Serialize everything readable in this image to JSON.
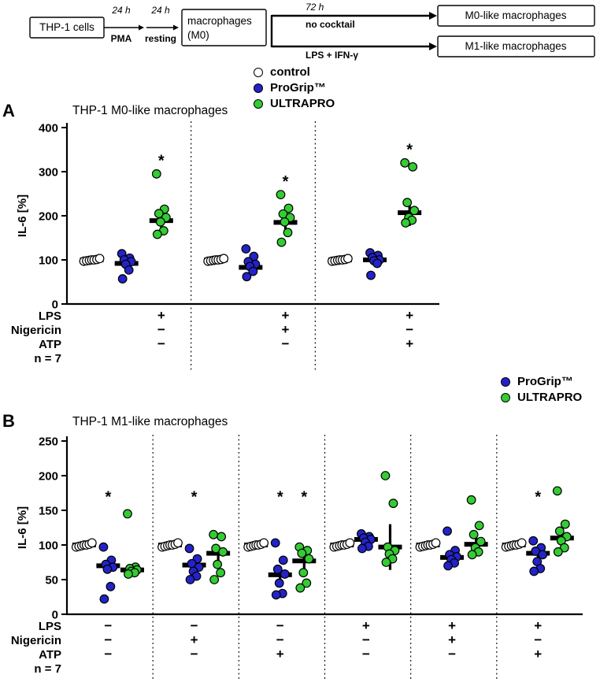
{
  "flow_diagram": {
    "box_thp1": "THP-1 cells",
    "arrow1_top": "24 h",
    "arrow1_bottom": "PMA",
    "arrow2_top": "24 h",
    "arrow2_bottom": "resting",
    "box_m0_line1": "macrophages",
    "box_m0_line2": "(M0)",
    "branch_top_time": "72 h",
    "branch_top_label": "no cocktail",
    "branch_bottom_label": "LPS + IFN-γ",
    "box_m0like": "M0-like macrophages",
    "box_m1like": "M1-like macrophages"
  },
  "legend_main": {
    "items": [
      {
        "label": "control",
        "marker": "open-circle"
      },
      {
        "label": "ProGrip™",
        "marker": "blue-circle"
      },
      {
        "label": "ULTRAPRO",
        "marker": "green-circle"
      }
    ]
  },
  "legend_b": {
    "items": [
      {
        "label": "ProGrip™",
        "marker": "blue-circle"
      },
      {
        "label": "ULTRAPRO",
        "marker": "green-circle"
      }
    ]
  },
  "colors": {
    "control": "#ffffff",
    "progrip": "#2323c8",
    "ultrapro": "#33cc33",
    "marker_stroke": "#000000",
    "bar": "#000000"
  },
  "chart_data": [
    {
      "type": "scatter",
      "panel_label": "A",
      "title": "THP-1 M0-like macrophages",
      "ylabel": "IL-6 [%]",
      "ylim": [
        0,
        400
      ],
      "yticks": [
        0,
        100,
        200,
        300,
        400
      ],
      "sig_symbol": "*",
      "series_names": [
        "control",
        "ProGrip™",
        "ULTRAPRO"
      ],
      "groups": [
        {
          "control": {
            "points": [
              97,
              98,
              99,
              100,
              100,
              101,
              103
            ],
            "mean": 100,
            "sem": 2,
            "sig": false
          },
          "progrip": {
            "points": [
              114,
              104,
              100,
              96,
              90,
              77,
              57
            ],
            "mean": 92,
            "sem": 7,
            "sig": false
          },
          "ultrapro": {
            "points": [
              295,
              215,
              205,
              196,
              186,
              166,
              158
            ],
            "mean": 189,
            "sem": 22,
            "sig": true
          }
        },
        {
          "control": {
            "points": [
              97,
              98,
              99,
              100,
              100,
              101,
              103
            ],
            "mean": 100,
            "sem": 2,
            "sig": false
          },
          "progrip": {
            "points": [
              125,
              108,
              96,
              90,
              85,
              74,
              62
            ],
            "mean": 83,
            "sem": 8,
            "sig": false
          },
          "ultrapro": {
            "points": [
              248,
              217,
              204,
              196,
              186,
              162,
              140
            ],
            "mean": 185,
            "sem": 16,
            "sig": true
          }
        },
        {
          "control": {
            "points": [
              97,
              98,
              99,
              100,
              100,
              101,
              103
            ],
            "mean": 100,
            "sem": 2,
            "sig": false
          },
          "progrip": {
            "points": [
              116,
              110,
              105,
              100,
              98,
              92,
              65
            ],
            "mean": 100,
            "sem": 7,
            "sig": false
          },
          "ultrapro": {
            "points": [
              320,
              311,
              230,
              212,
              196,
              190,
              184
            ],
            "mean": 207,
            "sem": 30,
            "sig": true
          }
        }
      ],
      "condition_rows": [
        {
          "label": "LPS",
          "values": [
            "+",
            "+",
            "+"
          ]
        },
        {
          "label": "Nigericin",
          "values": [
            "−",
            "+",
            "−"
          ]
        },
        {
          "label": "ATP",
          "values": [
            "−",
            "−",
            "+"
          ]
        }
      ],
      "n_label": "n = 7"
    },
    {
      "type": "scatter",
      "panel_label": "B",
      "title": "THP-1 M1-like macrophages",
      "ylabel": "IL-6 [%]",
      "ylim": [
        0,
        250
      ],
      "yticks": [
        0,
        50,
        100,
        150,
        200,
        250
      ],
      "sig_symbol": "*",
      "sig_y": 162,
      "series_names": [
        "control",
        "ProGrip™",
        "ULTRAPRO"
      ],
      "groups": [
        {
          "control": {
            "points": [
              97,
              98,
              99,
              100,
              100,
              101,
              103
            ],
            "mean": 100,
            "sem": 2,
            "sig": false
          },
          "progrip": {
            "points": [
              97,
              78,
              72,
              68,
              65,
              40,
              22
            ],
            "mean": 70,
            "sem": 10,
            "sig": true
          },
          "ultrapro": {
            "points": [
              145,
              68,
              66,
              64,
              62,
              60,
              58
            ],
            "mean": 64,
            "sem": 5,
            "sig": false
          }
        },
        {
          "control": {
            "points": [
              97,
              98,
              99,
              100,
              100,
              101,
              103
            ],
            "mean": 100,
            "sem": 2,
            "sig": false
          },
          "progrip": {
            "points": [
              95,
              80,
              73,
              68,
              62,
              55,
              50
            ],
            "mean": 71,
            "sem": 7,
            "sig": true
          },
          "ultrapro": {
            "points": [
              115,
              112,
              95,
              90,
              72,
              60,
              50
            ],
            "mean": 88,
            "sem": 10,
            "sig": false
          }
        },
        {
          "control": {
            "points": [
              97,
              98,
              99,
              100,
              100,
              101,
              103
            ],
            "mean": 100,
            "sem": 2,
            "sig": false
          },
          "progrip": {
            "points": [
              103,
              78,
              65,
              58,
              45,
              30,
              28
            ],
            "mean": 57,
            "sem": 12,
            "sig": true
          },
          "ultrapro": {
            "points": [
              97,
              92,
              88,
              80,
              60,
              45,
              38
            ],
            "mean": 77,
            "sem": 11,
            "sig": true
          }
        },
        {
          "control": {
            "points": [
              97,
              98,
              99,
              100,
              100,
              101,
              103
            ],
            "mean": 100,
            "sem": 2,
            "sig": false
          },
          "progrip": {
            "points": [
              116,
              112,
              110,
              108,
              104,
              98,
              95
            ],
            "mean": 108,
            "sem": 4,
            "sig": false
          },
          "ultrapro": {
            "points": [
              200,
              160,
              97,
              92,
              87,
              80,
              75
            ],
            "mean": 97,
            "sem": 33,
            "sig": false
          }
        },
        {
          "control": {
            "points": [
              97,
              98,
              99,
              100,
              100,
              101,
              103
            ],
            "mean": 100,
            "sem": 2,
            "sig": false
          },
          "progrip": {
            "points": [
              120,
              92,
              86,
              83,
              79,
              74,
              70
            ],
            "mean": 82,
            "sem": 7,
            "sig": false
          },
          "ultrapro": {
            "points": [
              165,
              128,
              115,
              105,
              96,
              90,
              86
            ],
            "mean": 101,
            "sem": 12,
            "sig": false
          }
        },
        {
          "control": {
            "points": [
              97,
              98,
              99,
              100,
              100,
              101,
              103
            ],
            "mean": 100,
            "sem": 2,
            "sig": false
          },
          "progrip": {
            "points": [
              106,
              96,
              91,
              86,
              76,
              66,
              62
            ],
            "mean": 88,
            "sem": 7,
            "sig": true
          },
          "ultrapro": {
            "points": [
              178,
              130,
              120,
              112,
              106,
              96,
              90
            ],
            "mean": 110,
            "sem": 12,
            "sig": false
          }
        }
      ],
      "condition_rows": [
        {
          "label": "LPS",
          "values": [
            "−",
            "−",
            "−",
            "+",
            "+",
            "+"
          ]
        },
        {
          "label": "Nigericin",
          "values": [
            "−",
            "+",
            "−",
            "−",
            "+",
            "−"
          ]
        },
        {
          "label": "ATP",
          "values": [
            "−",
            "−",
            "+",
            "−",
            "−",
            "+"
          ]
        }
      ],
      "n_label": "n = 7"
    }
  ]
}
